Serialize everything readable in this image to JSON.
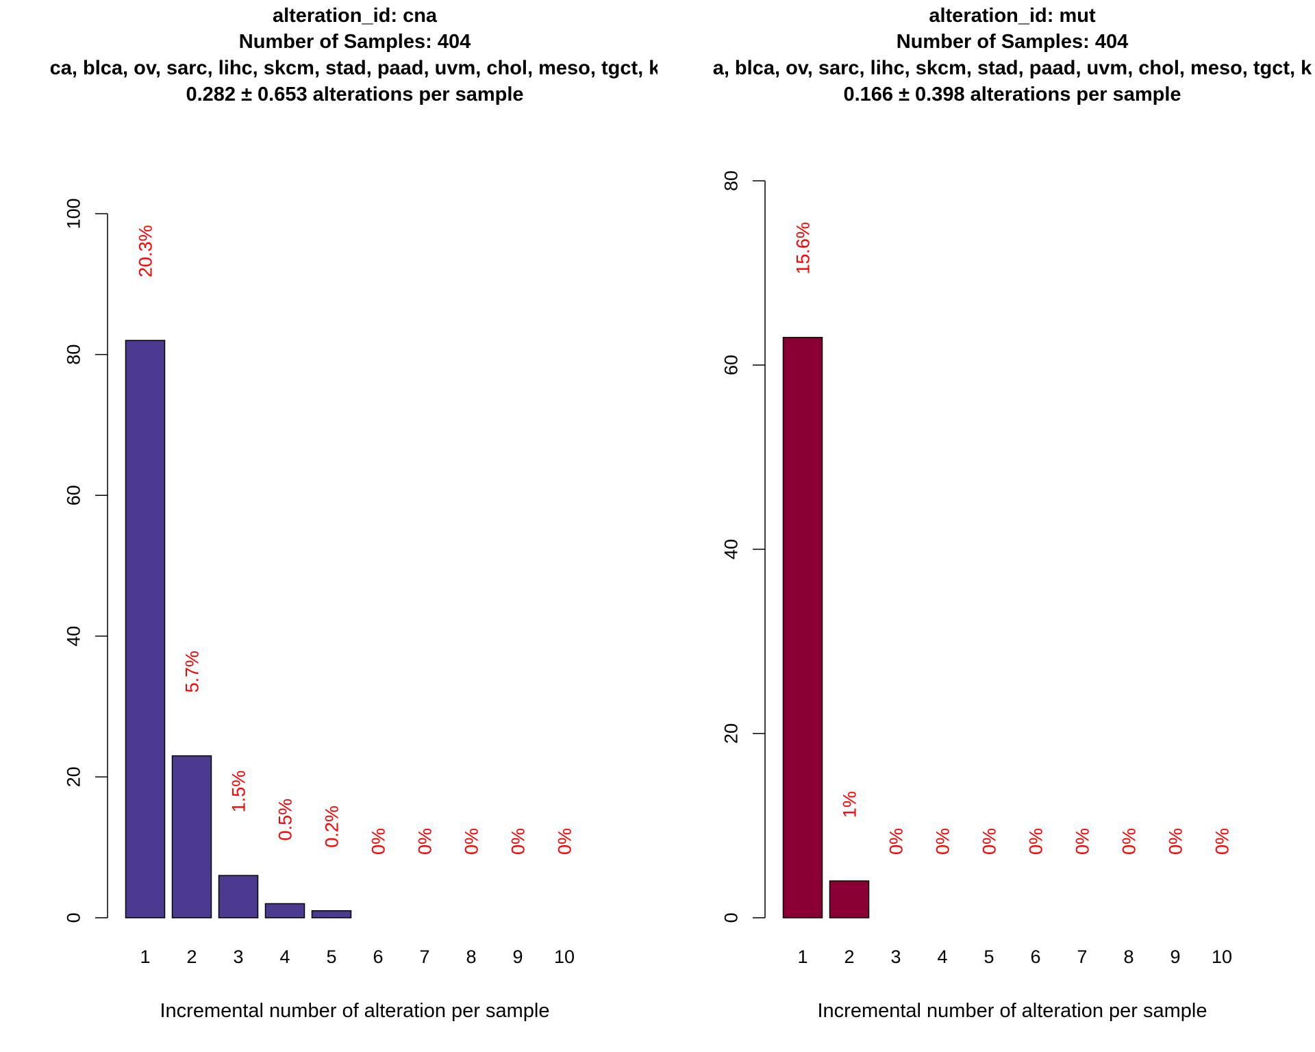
{
  "chart_data": [
    {
      "type": "bar",
      "title": "alteration_id: cna",
      "subtitle": [
        "Number of Samples: 404",
        "ca, blca, ov, sarc, lihc, skcm, stad, paad, uvm, chol, meso, tgct, k",
        "0.282 ± 0.653 alterations per sample"
      ],
      "xlabel": "Incremental number of alteration per sample",
      "categories": [
        "1",
        "2",
        "3",
        "4",
        "5",
        "6",
        "7",
        "8",
        "9",
        "10"
      ],
      "values": [
        82,
        23,
        6,
        2,
        1,
        0,
        0,
        0,
        0,
        0
      ],
      "annotations": [
        "20.3%",
        "5.7%",
        "1.5%",
        "0.5%",
        "0.2%",
        "0%",
        "0%",
        "0%",
        "0%",
        "0%"
      ],
      "color": "#4b3a8f",
      "annotation_color": "#ff0000",
      "ylim": [
        0,
        100
      ],
      "yticks": [
        0,
        20,
        40,
        60,
        80,
        100
      ]
    },
    {
      "type": "bar",
      "title": "alteration_id: mut",
      "subtitle": [
        "Number of Samples: 404",
        "a, blca, ov, sarc, lihc, skcm, stad, paad, uvm, chol, meso, tgct, k",
        "0.166 ± 0.398 alterations per sample"
      ],
      "xlabel": "Incremental number of alteration per sample",
      "categories": [
        "1",
        "2",
        "3",
        "4",
        "5",
        "6",
        "7",
        "8",
        "9",
        "10"
      ],
      "values": [
        63,
        4,
        0,
        0,
        0,
        0,
        0,
        0,
        0,
        0
      ],
      "annotations": [
        "15.6%",
        "1%",
        "0%",
        "0%",
        "0%",
        "0%",
        "0%",
        "0%",
        "0%",
        "0%"
      ],
      "color": "#8b0034",
      "annotation_color": "#ff0000",
      "ylim": [
        0,
        80
      ],
      "yticks": [
        0,
        20,
        40,
        60,
        80
      ]
    }
  ]
}
